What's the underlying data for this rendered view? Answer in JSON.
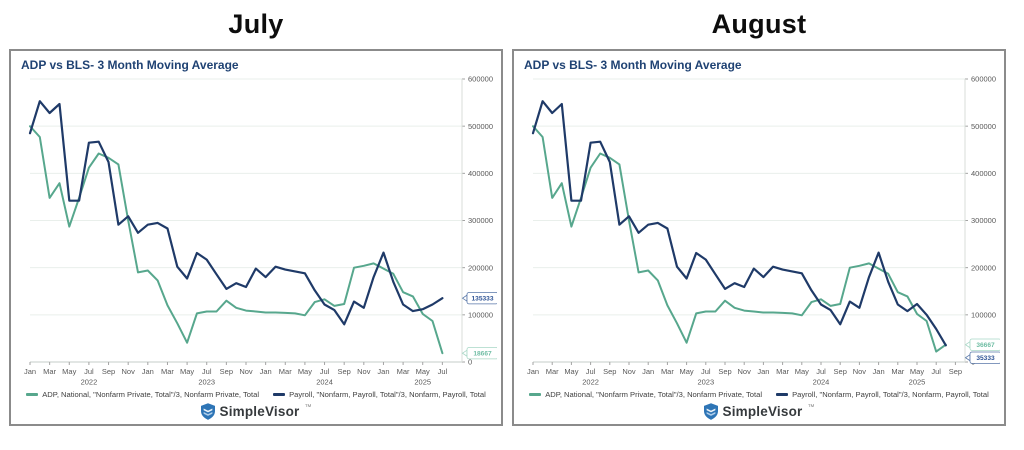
{
  "panels": [
    {
      "month_title": "July"
    },
    {
      "month_title": "August"
    }
  ],
  "chart_header": "ADP vs BLS- 3 Month Moving Average",
  "legend": {
    "adp": "ADP, National, \"Nonfarm Private, Total\"/3, Nonfarm Private, Total",
    "payroll": "Payroll, \"Nonfarm, Payroll, Total\"/3, Nonfarm, Payroll, Total"
  },
  "brand": {
    "name": "SimpleVisor",
    "tm": "™"
  },
  "colors": {
    "adp_line": "#57a78d",
    "payroll_line": "#1f3a68",
    "header_text": "#1f4273",
    "grid": "#e9efeb",
    "zero_line": "#c6ccc8",
    "axis_line": "#d8ded9",
    "tick": "#a3a3a3",
    "tick_text": "#595959",
    "callout_adp_text": "#6fbda4",
    "callout_adp_border": "#a8d7c6",
    "callout_payroll_text": "#2e5395",
    "callout_payroll_border": "#5877a8"
  },
  "chart_data": [
    {
      "type": "line",
      "title": "July",
      "subtitle": "ADP vs BLS- 3 Month Moving Average",
      "x_start": "2022-01",
      "freq": "monthly",
      "ylim": [
        0,
        600000
      ],
      "yticks": [
        0,
        100000,
        200000,
        300000,
        400000,
        500000,
        600000
      ],
      "grid": "horizontal",
      "legend_position": "bottom",
      "axis_slots": 44,
      "xtick_labels": [
        "Jan",
        "Mar",
        "May",
        "Jul",
        "Sep",
        "Nov",
        "Jan",
        "Mar",
        "May",
        "Jul",
        "Sep",
        "Nov",
        "Jan",
        "Mar",
        "May",
        "Jul",
        "Sep",
        "Nov",
        "Jan",
        "Mar",
        "May",
        "Jul"
      ],
      "year_labels": [
        {
          "text": "2022",
          "slot": 6
        },
        {
          "text": "2023",
          "slot": 18
        },
        {
          "text": "2024",
          "slot": 30
        },
        {
          "text": "2025",
          "slot": 40
        }
      ],
      "series": [
        {
          "name": "ADP, National, \"Nonfarm Private, Total\"/3, Nonfarm Private, Total",
          "color": "#57a78d",
          "values": [
            500000,
            477000,
            348000,
            379000,
            287000,
            348000,
            412000,
            442000,
            433000,
            419000,
            300000,
            190000,
            194000,
            173000,
            120000,
            82000,
            41000,
            103000,
            107000,
            107000,
            130000,
            115000,
            109000,
            107000,
            105000,
            105000,
            104000,
            103000,
            99000,
            127000,
            133000,
            119000,
            123000,
            200000,
            204000,
            209000,
            198000,
            187000,
            148000,
            139000,
            102000,
            87000,
            18667
          ]
        },
        {
          "name": "Payroll, \"Nonfarm, Payroll, Total\"/3, Nonfarm, Payroll, Total",
          "color": "#1f3a68",
          "values": [
            485000,
            553000,
            528000,
            547000,
            342000,
            342000,
            465000,
            467000,
            424000,
            291000,
            309000,
            274000,
            291000,
            295000,
            283000,
            202000,
            177000,
            231000,
            217000,
            186000,
            155000,
            167000,
            159000,
            198000,
            180000,
            202000,
            196000,
            192000,
            188000,
            152000,
            122000,
            110000,
            80000,
            128000,
            115000,
            180000,
            232000,
            170000,
            122000,
            108000,
            112000,
            122000,
            135333
          ]
        }
      ],
      "end_callouts": [
        {
          "label": "135333",
          "value": 135333,
          "text_color": "#2e5395",
          "border_color": "#5877a8"
        },
        {
          "label": "18667",
          "value": 18667,
          "text_color": "#6fbda4",
          "border_color": "#a8d7c6"
        }
      ]
    },
    {
      "type": "line",
      "title": "August",
      "subtitle": "ADP vs BLS- 3 Month Moving Average",
      "x_start": "2022-01",
      "freq": "monthly",
      "ylim": [
        0,
        600000
      ],
      "yticks": [
        0,
        100000,
        200000,
        300000,
        400000,
        500000,
        600000
      ],
      "grid": "horizontal",
      "legend_position": "bottom",
      "axis_slots": 45,
      "xtick_labels": [
        "Jan",
        "Mar",
        "May",
        "Jul",
        "Sep",
        "Nov",
        "Jan",
        "Mar",
        "May",
        "Jul",
        "Sep",
        "Nov",
        "Jan",
        "Mar",
        "May",
        "Jul",
        "Sep",
        "Nov",
        "Jan",
        "Mar",
        "May",
        "Jul",
        "Sep"
      ],
      "year_labels": [
        {
          "text": "2022",
          "slot": 6
        },
        {
          "text": "2023",
          "slot": 18
        },
        {
          "text": "2024",
          "slot": 30
        },
        {
          "text": "2025",
          "slot": 40
        }
      ],
      "series": [
        {
          "name": "ADP, National, \"Nonfarm Private, Total\"/3, Nonfarm Private, Total",
          "color": "#57a78d",
          "values": [
            500000,
            477000,
            348000,
            379000,
            287000,
            348000,
            412000,
            442000,
            433000,
            419000,
            300000,
            190000,
            194000,
            173000,
            120000,
            82000,
            41000,
            103000,
            107000,
            107000,
            130000,
            115000,
            109000,
            107000,
            105000,
            105000,
            104000,
            103000,
            99000,
            127000,
            133000,
            119000,
            123000,
            200000,
            204000,
            209000,
            198000,
            187000,
            148000,
            139000,
            102000,
            87000,
            22000,
            36667
          ]
        },
        {
          "name": "Payroll, \"Nonfarm, Payroll, Total\"/3, Nonfarm, Payroll, Total",
          "color": "#1f3a68",
          "values": [
            485000,
            553000,
            528000,
            547000,
            342000,
            342000,
            465000,
            467000,
            424000,
            291000,
            309000,
            274000,
            291000,
            295000,
            283000,
            202000,
            177000,
            231000,
            217000,
            186000,
            155000,
            167000,
            159000,
            198000,
            180000,
            202000,
            196000,
            192000,
            188000,
            152000,
            122000,
            110000,
            80000,
            128000,
            115000,
            180000,
            232000,
            170000,
            122000,
            108000,
            123000,
            100000,
            70000,
            35333
          ]
        }
      ],
      "end_callouts": [
        {
          "label": "36667",
          "value": 36667,
          "text_color": "#6fbda4",
          "border_color": "#a8d7c6"
        },
        {
          "label": "35333",
          "value": 35333,
          "text_color": "#2e5395",
          "border_color": "#5877a8"
        }
      ]
    }
  ]
}
